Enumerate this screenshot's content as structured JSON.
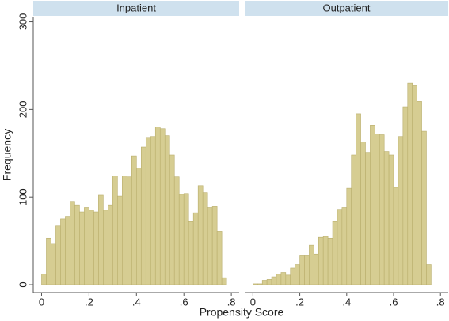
{
  "xlabel": "Propensity Score",
  "ylabel": "Frequency",
  "chart_data": [
    {
      "type": "histogram",
      "title": "Inpatient",
      "color": "#d6cd92",
      "bins": [
        0,
        0.02,
        0.04,
        0.06,
        0.08,
        0.1,
        0.12,
        0.14,
        0.16,
        0.18,
        0.2,
        0.22,
        0.24,
        0.26,
        0.28,
        0.3,
        0.32,
        0.34,
        0.36,
        0.38,
        0.4,
        0.42,
        0.44,
        0.46,
        0.48,
        0.5,
        0.52,
        0.54,
        0.56,
        0.58,
        0.6,
        0.62,
        0.64,
        0.66,
        0.68,
        0.7,
        0.72,
        0.74,
        0.76,
        0.78
      ],
      "values": [
        12,
        53,
        47,
        67,
        75,
        78,
        95,
        91,
        83,
        88,
        85,
        83,
        102,
        85,
        91,
        124,
        101,
        124,
        123,
        147,
        133,
        157,
        168,
        169,
        180,
        178,
        170,
        148,
        123,
        103,
        104,
        72,
        82,
        113,
        105,
        88,
        89,
        61,
        8
      ],
      "xlim": [
        -0.035,
        0.833
      ],
      "ylim": [
        -9,
        305
      ],
      "xticks": [
        0,
        {
          "value": 0.2,
          "label": ".2"
        },
        {
          "value": 0.4,
          "label": ".4"
        },
        {
          "value": 0.6,
          "label": ".6"
        },
        {
          "value": 0.8,
          "label": ".8"
        }
      ],
      "yticks": [
        0,
        100,
        200,
        300
      ]
    },
    {
      "type": "histogram",
      "title": "Outpatient",
      "color": "#d6cd92",
      "bins": [
        0,
        0.02,
        0.04,
        0.06,
        0.08,
        0.1,
        0.12,
        0.14,
        0.16,
        0.18,
        0.2,
        0.22,
        0.24,
        0.26,
        0.28,
        0.3,
        0.32,
        0.34,
        0.36,
        0.38,
        0.4,
        0.42,
        0.44,
        0.46,
        0.48,
        0.5,
        0.52,
        0.54,
        0.56,
        0.58,
        0.6,
        0.62,
        0.64,
        0.66,
        0.68,
        0.7,
        0.72,
        0.74,
        0.76
      ],
      "values": [
        1,
        1,
        5,
        6,
        9,
        12,
        14,
        11,
        19,
        23,
        33,
        33,
        45,
        35,
        54,
        55,
        53,
        72,
        86,
        88,
        110,
        148,
        195,
        163,
        151,
        182,
        172,
        171,
        152,
        148,
        111,
        169,
        203,
        230,
        227,
        209,
        175,
        23
      ],
      "xlim": [
        -0.035,
        0.833
      ],
      "ylim": [
        -9,
        305
      ],
      "xticks": [
        0,
        {
          "value": 0.2,
          "label": ".2"
        },
        {
          "value": 0.4,
          "label": ".4"
        },
        {
          "value": 0.6,
          "label": ".6"
        },
        {
          "value": 0.8,
          "label": ".8"
        }
      ],
      "yticks": [
        0,
        100,
        200,
        300
      ]
    }
  ]
}
